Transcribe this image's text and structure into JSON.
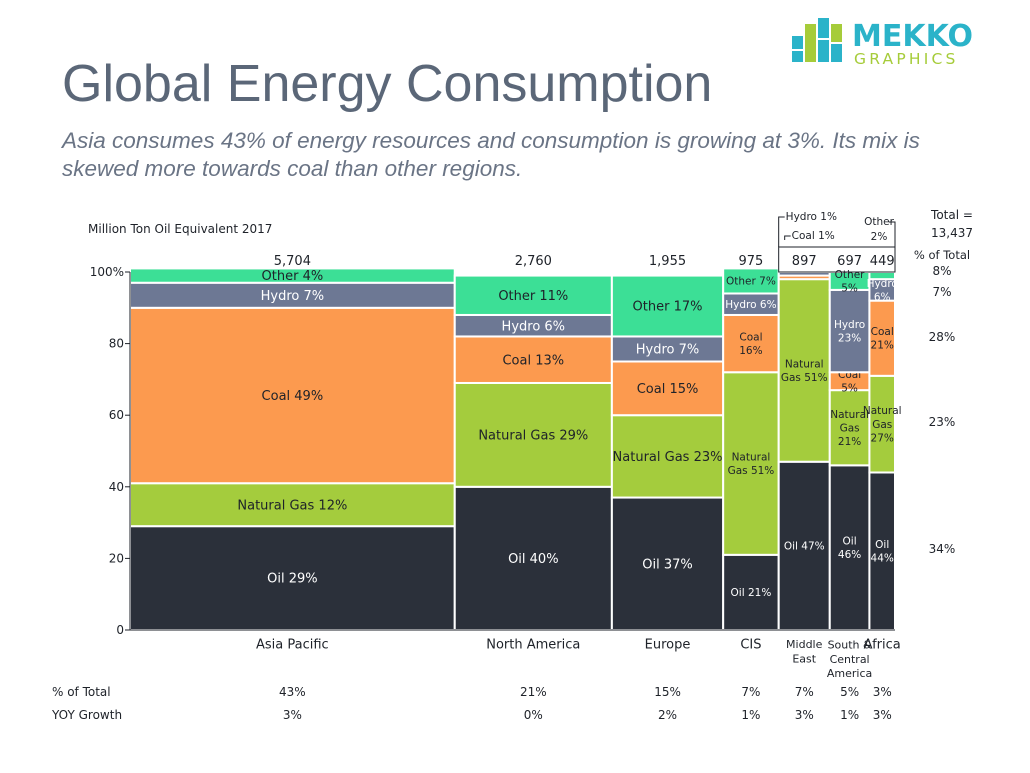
{
  "title": "Global Energy Consumption",
  "subtitle": "Asia consumes 43% of energy resources and consumption is growing at 3%. Its mix is skewed more towards coal than other regions.",
  "logo": {
    "line1": "MEKKO",
    "line2": "GRAPHICS"
  },
  "chart_data": {
    "type": "marimekko",
    "units_label": "Million Ton Oil Equivalent 2017",
    "total_label": "Total =",
    "total_value": "13,437",
    "pct_total_header": "% of Total",
    "ylim": [
      0,
      100
    ],
    "yticks": [
      "0",
      "20",
      "40",
      "60",
      "80",
      "100%"
    ],
    "colors": {
      "Oil": "#2b303a",
      "Natural Gas": "#a4cc3d",
      "Coal": "#fc9a4f",
      "Hydro": "#6d7894",
      "Other": "#3cdf96"
    },
    "columns": [
      {
        "name": "Asia Pacific",
        "total": "5,704",
        "width": 5704,
        "pct_total": "43%",
        "yoy": "3%",
        "segments": [
          {
            "series": "Oil",
            "value": 29,
            "label": "Oil 29%"
          },
          {
            "series": "Natural Gas",
            "value": 12,
            "label": "Natural Gas 12%"
          },
          {
            "series": "Coal",
            "value": 49,
            "label": "Coal 49%"
          },
          {
            "series": "Hydro",
            "value": 7,
            "label": "Hydro 7%"
          },
          {
            "series": "Other",
            "value": 4,
            "label": "Other 4%"
          }
        ]
      },
      {
        "name": "North America",
        "total": "2,760",
        "width": 2760,
        "pct_total": "21%",
        "yoy": "0%",
        "segments": [
          {
            "series": "Oil",
            "value": 40,
            "label": "Oil 40%"
          },
          {
            "series": "Natural Gas",
            "value": 29,
            "label": "Natural Gas 29%"
          },
          {
            "series": "Coal",
            "value": 13,
            "label": "Coal 13%"
          },
          {
            "series": "Hydro",
            "value": 6,
            "label": "Hydro 6%"
          },
          {
            "series": "Other",
            "value": 11,
            "label": "Other 11%"
          }
        ]
      },
      {
        "name": "Europe",
        "total": "1,955",
        "width": 1955,
        "pct_total": "15%",
        "yoy": "2%",
        "segments": [
          {
            "series": "Oil",
            "value": 37,
            "label": "Oil 37%"
          },
          {
            "series": "Natural Gas",
            "value": 23,
            "label": "Natural Gas 23%"
          },
          {
            "series": "Coal",
            "value": 15,
            "label": "Coal 15%"
          },
          {
            "series": "Hydro",
            "value": 7,
            "label": "Hydro 7%"
          },
          {
            "series": "Other",
            "value": 17,
            "label": "Other 17%"
          }
        ]
      },
      {
        "name": "CIS",
        "total": "975",
        "width": 975,
        "pct_total": "7%",
        "yoy": "1%",
        "segments": [
          {
            "series": "Oil",
            "value": 21,
            "label": "Oil 21%"
          },
          {
            "series": "Natural Gas",
            "value": 51,
            "label": "Natural\nGas 51%"
          },
          {
            "series": "Coal",
            "value": 16,
            "label": "Coal\n16%"
          },
          {
            "series": "Hydro",
            "value": 6,
            "label": "Hydro 6%"
          },
          {
            "series": "Other",
            "value": 7,
            "label": "Other 7%"
          }
        ]
      },
      {
        "name": "Middle\nEast",
        "total": "897",
        "width": 897,
        "pct_total": "7%",
        "yoy": "3%",
        "segments": [
          {
            "series": "Oil",
            "value": 47,
            "label": "Oil 47%"
          },
          {
            "series": "Natural Gas",
            "value": 51,
            "label": "Natural\nGas 51%"
          },
          {
            "series": "Coal",
            "value": 1,
            "label": ""
          },
          {
            "series": "Hydro",
            "value": 1,
            "label": ""
          }
        ]
      },
      {
        "name": "South &\nCentral\nAmerica",
        "total": "697",
        "width": 697,
        "pct_total": "5%",
        "yoy": "1%",
        "segments": [
          {
            "series": "Oil",
            "value": 46,
            "label": "Oil\n46%"
          },
          {
            "series": "Natural Gas",
            "value": 21,
            "label": "Natural\nGas\n21%"
          },
          {
            "series": "Coal",
            "value": 5,
            "label": "Coal\n5%"
          },
          {
            "series": "Hydro",
            "value": 23,
            "label": "Hydro\n23%"
          },
          {
            "series": "Other",
            "value": 5,
            "label": "Other\n5%"
          }
        ]
      },
      {
        "name": "Africa",
        "total": "449",
        "width": 449,
        "pct_total": "3%",
        "yoy": "3%",
        "segments": [
          {
            "series": "Oil",
            "value": 44,
            "label": "Oil\n44%"
          },
          {
            "series": "Natural Gas",
            "value": 27,
            "label": "Natural\nGas\n27%"
          },
          {
            "series": "Coal",
            "value": 21,
            "label": "Coal\n21%"
          },
          {
            "series": "Hydro",
            "value": 6,
            "label": "Hydro\n6%"
          },
          {
            "series": "Other",
            "value": 2,
            "label": ""
          }
        ]
      }
    ],
    "callouts": {
      "middle_east": [
        "Hydro 1%",
        "Coal 1%"
      ],
      "africa": [
        "Other",
        "2%"
      ]
    },
    "series_pct_total": [
      {
        "series": "Other",
        "value": "8%"
      },
      {
        "series": "Hydro",
        "value": "7%"
      },
      {
        "series": "Coal",
        "value": "28%"
      },
      {
        "series": "Natural Gas",
        "value": "23%"
      },
      {
        "series": "Oil",
        "value": "34%"
      }
    ],
    "rows": [
      {
        "label": "% of Total",
        "key": "pct_total"
      },
      {
        "label": "YOY Growth",
        "key": "yoy"
      }
    ]
  }
}
